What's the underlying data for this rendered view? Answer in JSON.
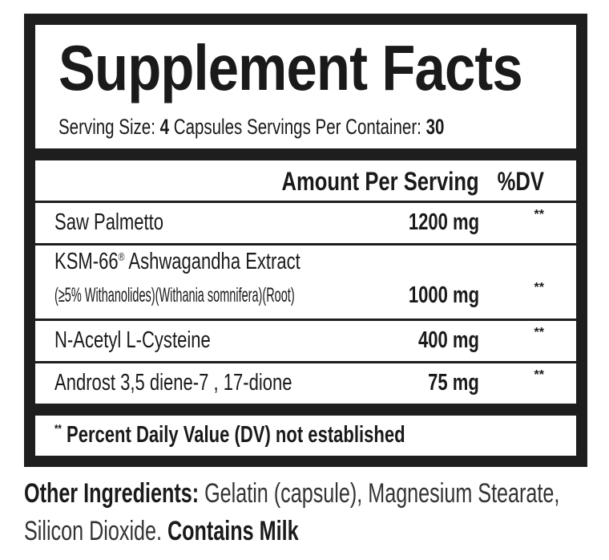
{
  "title": "Supplement Facts",
  "serving": {
    "size_label": "Serving Size:",
    "size_value": "4",
    "size_unit": "Capsules",
    "per_container_label": "Servings Per Container:",
    "per_container_value": "30"
  },
  "header": {
    "amount": "Amount Per Serving",
    "dv": "%DV"
  },
  "ingredients": [
    {
      "name": "Saw Palmetto",
      "amount": "1200 mg",
      "dv": "**"
    },
    {
      "name": "KSM-66",
      "mark": "®",
      "name_rest": " Ashwagandha Extract",
      "detail": "(≥5% Withanolides)(Withania somnifera)(Root)",
      "amount": "1000 mg",
      "dv": "**"
    },
    {
      "name": "N-Acetyl L-Cysteine",
      "amount": "400 mg",
      "dv": "**"
    },
    {
      "name": "Androst 3,5 diene-7 , 17-dione",
      "amount": "75 mg",
      "dv": "**"
    }
  ],
  "footnote": {
    "stars": "**",
    "text": "Percent Daily Value (DV) not established"
  },
  "other": {
    "label": "Other Ingredients:",
    "text1": "Gelatin (capsule), Magnesium Stearate,",
    "text2": "Silicon Dioxide.",
    "contains": "Contains Milk"
  }
}
